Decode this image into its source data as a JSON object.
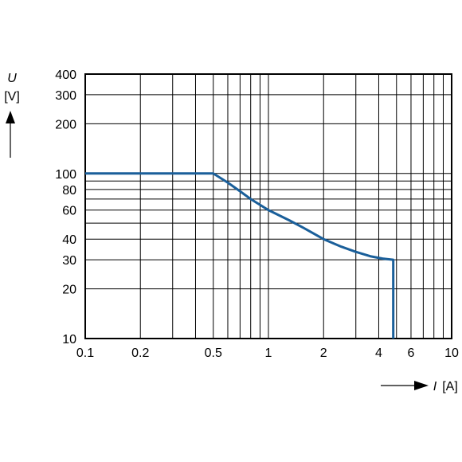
{
  "chart_data": {
    "type": "line",
    "title": "",
    "xlabel": {
      "symbol": "I",
      "unit": "[A]"
    },
    "ylabel": {
      "symbol": "U",
      "unit": "[V]"
    },
    "x_scale": "log",
    "y_scale": "log",
    "xlim": [
      0.1,
      10
    ],
    "ylim": [
      10,
      400
    ],
    "grid": true,
    "legend": "none",
    "x_ticks": [
      {
        "value": 0.1,
        "label": "0.1"
      },
      {
        "value": 0.2,
        "label": "0.2"
      },
      {
        "value": 0.5,
        "label": "0.5"
      },
      {
        "value": 1,
        "label": "1"
      },
      {
        "value": 2,
        "label": "2"
      },
      {
        "value": 4,
        "label": "4"
      },
      {
        "value": 6,
        "label": "6"
      },
      {
        "value": 10,
        "label": "10"
      }
    ],
    "y_ticks": [
      {
        "value": 10,
        "label": "10"
      },
      {
        "value": 20,
        "label": "20"
      },
      {
        "value": 30,
        "label": "30"
      },
      {
        "value": 40,
        "label": "40"
      },
      {
        "value": 60,
        "label": "60"
      },
      {
        "value": 80,
        "label": "80"
      },
      {
        "value": 100,
        "label": "100"
      },
      {
        "value": 200,
        "label": "200"
      },
      {
        "value": 300,
        "label": "300"
      },
      {
        "value": 400,
        "label": "400"
      }
    ],
    "x_grid": [
      0.1,
      0.2,
      0.3,
      0.4,
      0.5,
      0.6,
      0.7,
      0.8,
      0.9,
      1,
      2,
      3,
      4,
      5,
      6,
      7,
      8,
      9,
      10
    ],
    "y_grid": [
      10,
      20,
      30,
      40,
      50,
      60,
      70,
      80,
      90,
      100,
      200,
      300,
      400
    ],
    "series": [
      {
        "color": "#1a5f9a",
        "points": [
          {
            "x": 0.1,
            "y": 100
          },
          {
            "x": 0.5,
            "y": 100
          },
          {
            "x": 0.6,
            "y": 88
          },
          {
            "x": 0.7,
            "y": 78
          },
          {
            "x": 0.8,
            "y": 70
          },
          {
            "x": 1.0,
            "y": 60
          },
          {
            "x": 1.3,
            "y": 52
          },
          {
            "x": 1.6,
            "y": 46
          },
          {
            "x": 2.0,
            "y": 40
          },
          {
            "x": 2.5,
            "y": 36
          },
          {
            "x": 3.0,
            "y": 33.5
          },
          {
            "x": 3.6,
            "y": 31.5
          },
          {
            "x": 4.2,
            "y": 30.5
          },
          {
            "x": 4.8,
            "y": 30
          },
          {
            "x": 4.8,
            "y": 10
          }
        ]
      }
    ]
  },
  "colors": {
    "grid": "#000000",
    "frame": "#000000",
    "text": "#000000",
    "series": "#1a5f9a"
  },
  "icons": {
    "x_axis_arrow": "right-arrow-icon",
    "y_axis_arrow": "up-arrow-icon"
  }
}
